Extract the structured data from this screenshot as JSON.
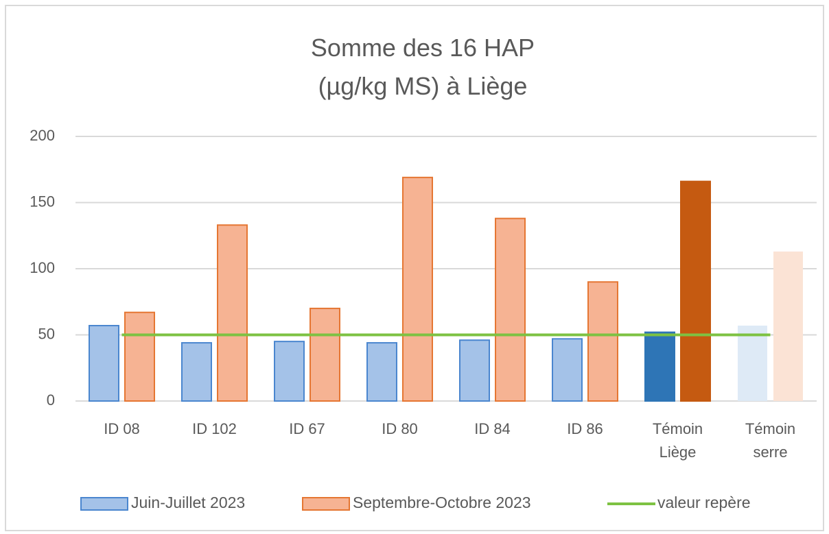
{
  "chart_data": {
    "type": "bar",
    "title": "Somme des 16 HAP\n(µg/kg MS) à Liège",
    "categories": [
      "ID 08",
      "ID 102",
      "ID 67",
      "ID 80",
      "ID 84",
      "ID 86",
      "Témoin\nLiège",
      "Témoin\nserre"
    ],
    "series": [
      {
        "name": "Juin-Juillet 2023",
        "type": "bar",
        "color": "#a4c2e8",
        "stroke": "#4a86cf",
        "colors": [
          "#a4c2e8",
          "#a4c2e8",
          "#a4c2e8",
          "#a4c2e8",
          "#a4c2e8",
          "#a4c2e8",
          "#2e75b6",
          "#deeaf6"
        ],
        "values": [
          57,
          44,
          45,
          44,
          46,
          47,
          52,
          57
        ]
      },
      {
        "name": "Septembre-Octobre 2023",
        "type": "bar",
        "color": "#f6b393",
        "stroke": "#e57632",
        "colors": [
          "#f6b393",
          "#f6b393",
          "#f6b393",
          "#f6b393",
          "#f6b393",
          "#f6b393",
          "#c55a11",
          "#fbe3d5"
        ],
        "values": [
          67,
          133,
          70,
          169,
          138,
          90,
          166,
          113
        ]
      },
      {
        "name": "valeur repère",
        "type": "line",
        "color": "#7dc242",
        "values": [
          50,
          50,
          50,
          50,
          50,
          50,
          50,
          50
        ]
      }
    ],
    "ylim": [
      0,
      200
    ],
    "yticks": [
      0,
      50,
      100,
      150,
      200
    ],
    "grid": true,
    "legend": "bottom"
  }
}
